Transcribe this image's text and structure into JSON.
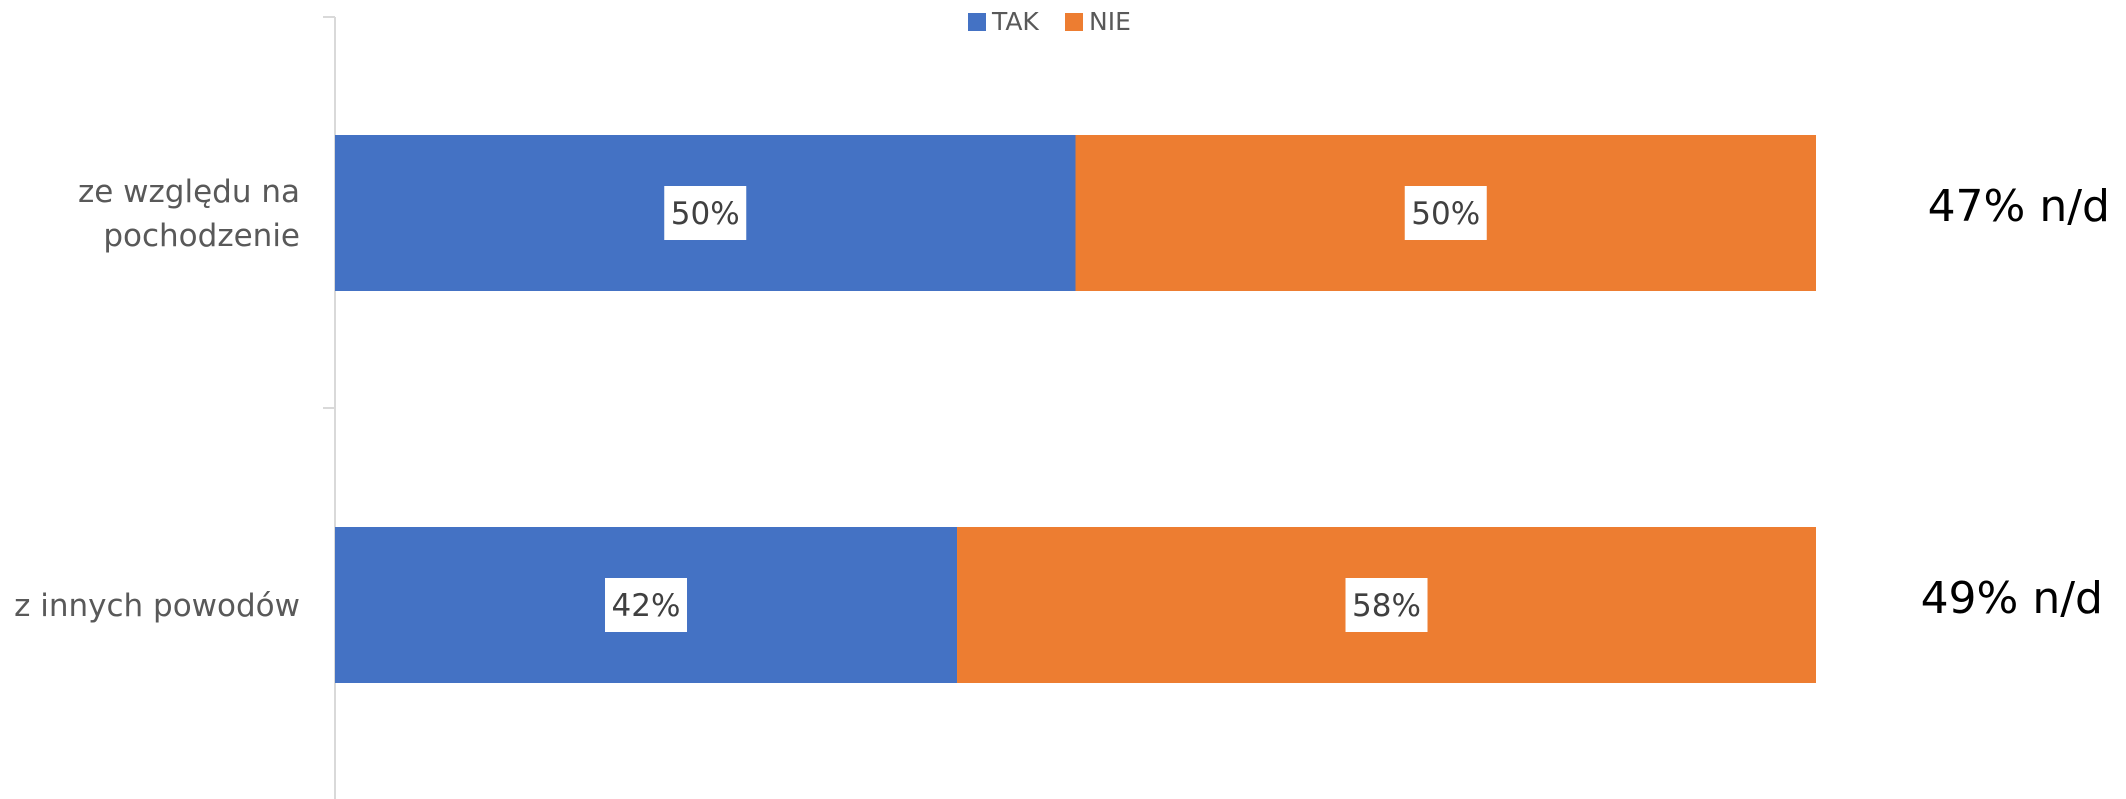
{
  "chart_data": {
    "type": "bar",
    "orientation": "horizontal",
    "stacked": true,
    "categories": [
      "ze względu na pochodzenie",
      "z innych powodów"
    ],
    "category_lines": [
      [
        "ze względu na",
        "pochodzenie"
      ],
      [
        "z innych powodów"
      ]
    ],
    "series": [
      {
        "name": "TAK",
        "values": [
          50,
          42
        ],
        "labels": [
          "50%",
          "42%"
        ],
        "color": "#4472C4"
      },
      {
        "name": "NIE",
        "values": [
          50,
          58
        ],
        "labels": [
          "50%",
          "58%"
        ],
        "color": "#ED7D31"
      }
    ],
    "annotations": [
      "47% n/d",
      "49% n/d"
    ],
    "xlim": [
      0,
      100
    ],
    "unit": "%",
    "legend_position": "top",
    "grid": false,
    "title": "",
    "xlabel": "",
    "ylabel": ""
  }
}
